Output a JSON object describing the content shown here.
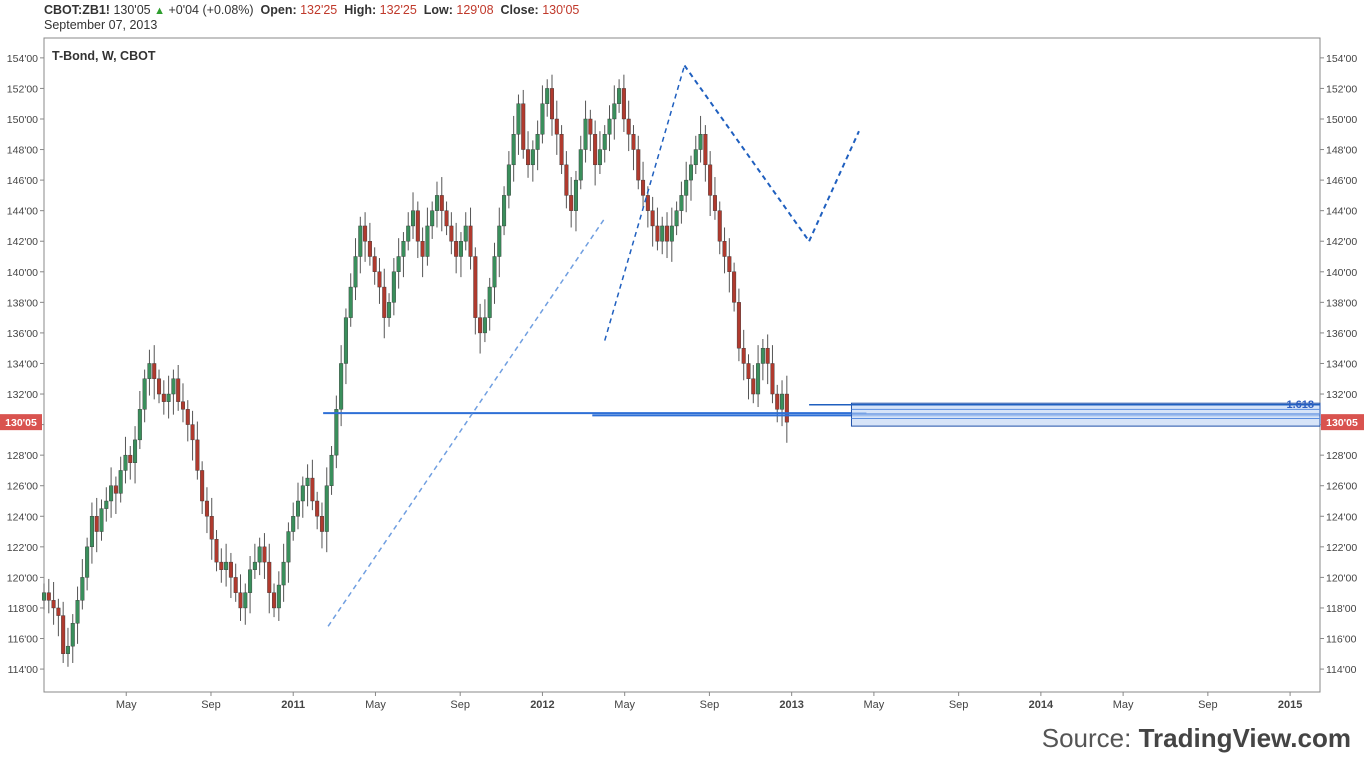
{
  "header": {
    "symbol": "CBOT:ZB1!",
    "last": "130'05",
    "change": "+0'04 (+0.08%)",
    "open_label": "Open:",
    "open": "132'25",
    "high_label": "High:",
    "high": "132'25",
    "low_label": "Low:",
    "low": "129'08",
    "close_label": "Close:",
    "close": "130'05",
    "date": "September 07, 2013"
  },
  "source": {
    "prefix": "Source:",
    "brand": "TradingView.com"
  },
  "colors": {
    "up": "#3a8f5c",
    "down": "#b03a2e",
    "wick": "#555555",
    "pattern": "#1f5fbf",
    "line": "#2e6fd6",
    "price_tag": "#d9534f"
  },
  "chart_data": {
    "type": "candlestick",
    "title": "T-Bond, W, CBOT",
    "y_ticks": [
      "114'00",
      "116'00",
      "118'00",
      "120'00",
      "122'00",
      "124'00",
      "126'00",
      "128'00",
      "130'00",
      "132'00",
      "134'00",
      "136'00",
      "138'00",
      "140'00",
      "142'00",
      "144'00",
      "146'00",
      "148'00",
      "150'00",
      "152'00",
      "154'00"
    ],
    "ylim": [
      112.5,
      155.3
    ],
    "x_labels": [
      "May",
      "Sep",
      "2011",
      "May",
      "Sep",
      "2012",
      "May",
      "Sep",
      "2013",
      "May",
      "Sep",
      "2014",
      "May",
      "Sep",
      "2015"
    ],
    "x_label_dates": [
      2010.33,
      2010.67,
      2011.0,
      2011.33,
      2011.67,
      2012.0,
      2012.33,
      2012.67,
      2013.0,
      2013.33,
      2013.67,
      2014.0,
      2014.33,
      2014.67,
      2015.0
    ],
    "xlim": [
      2010.0,
      2015.12
    ],
    "last_price_label": "130'05",
    "last_price": 130.16,
    "candles_weekly_close": [
      119,
      118.5,
      118,
      117.5,
      115,
      115.5,
      117,
      118.5,
      120,
      122,
      124,
      123,
      124.5,
      125,
      126,
      125.5,
      127,
      128,
      127.5,
      129,
      131,
      133,
      134,
      133,
      132,
      131.5,
      132,
      133,
      131.5,
      131,
      130,
      129,
      127,
      125,
      124,
      122.5,
      121,
      120.5,
      121,
      120,
      119,
      118,
      119,
      120.5,
      121,
      122,
      121,
      119,
      118,
      119.5,
      121,
      123,
      124,
      125,
      126,
      126.5,
      125,
      124,
      123,
      126,
      128,
      131,
      134,
      137,
      139,
      141,
      143,
      142,
      141,
      140,
      139,
      137,
      138,
      140,
      141,
      142,
      143,
      144,
      142,
      141,
      143,
      144,
      145,
      144,
      143,
      142,
      141,
      142,
      143,
      141,
      137,
      136,
      137,
      139,
      141,
      143,
      145,
      147,
      149,
      151,
      148,
      147,
      148,
      149,
      151,
      152,
      150,
      149,
      147,
      145,
      144,
      146,
      148,
      150,
      149,
      147,
      148,
      149,
      150,
      151,
      152,
      150,
      149,
      148,
      146,
      145,
      144,
      143,
      142,
      143,
      142,
      143,
      144,
      145,
      146,
      147,
      148,
      149,
      147,
      145,
      144,
      142,
      141,
      140,
      138,
      135,
      134,
      133,
      132,
      134,
      135,
      134,
      132,
      131,
      132,
      130.16
    ],
    "candles_start_date": 2010.0,
    "candles_step_years": 0.01923,
    "pattern_lines": [
      {
        "from": [
          2011.14,
          116.8
        ],
        "to": [
          2012.25,
          143.5
        ],
        "style": "dashed"
      },
      {
        "from": [
          2012.25,
          135.5
        ],
        "to": [
          2012.57,
          153.5
        ],
        "style": "dashed"
      },
      {
        "from": [
          2012.57,
          153.5
        ],
        "to": [
          2013.07,
          142.0
        ],
        "style": "dashed"
      },
      {
        "from": [
          2013.07,
          142.0
        ],
        "to": [
          2013.27,
          149.2
        ],
        "style": "dashed"
      }
    ],
    "horizontal_lines": [
      {
        "from": 2011.12,
        "to": 2013.3,
        "y": 130.75
      },
      {
        "from": 2012.2,
        "to": 2015.12,
        "y": 130.6
      }
    ],
    "fib_box": {
      "x1": 2013.24,
      "x2": 2015.12,
      "y_top": 131.4,
      "y_bottom": 129.9,
      "label": "1.618",
      "lines": [
        131.3,
        131.0,
        130.7,
        130.4
      ]
    }
  }
}
